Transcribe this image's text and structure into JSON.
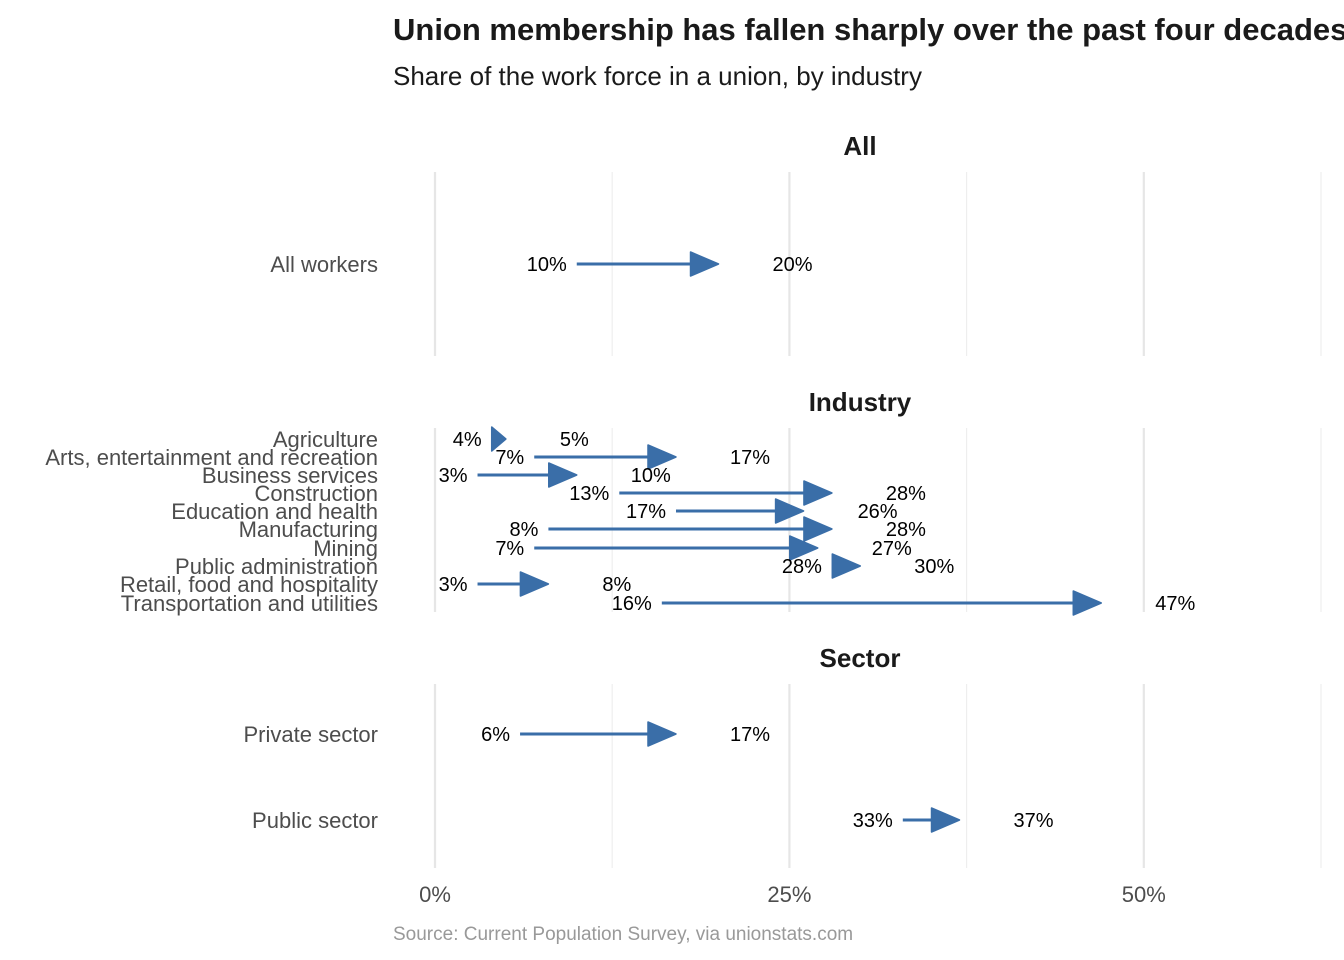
{
  "chart_data": {
    "type": "arrow",
    "title": "Union membership has fallen sharply over the past four decades",
    "subtitle": "Share of the work force in a union, by industry",
    "caption": "Source: Current Population Survey, via unionstats.com",
    "x_ticks": [
      "0%",
      "25%",
      "50%"
    ],
    "xlim": [
      0,
      62.5
    ],
    "arrow_color": "#3a6ea8",
    "panels": [
      {
        "name": "All",
        "rows": [
          {
            "label": "All workers",
            "from": 20,
            "to": 10,
            "from_label": "20%",
            "to_label": "10%"
          }
        ]
      },
      {
        "name": "Industry",
        "rows": [
          {
            "label": "Agriculture",
            "from": 5,
            "to": 4,
            "from_label": "5%",
            "to_label": "4%"
          },
          {
            "label": "Arts, entertainment and recreation",
            "from": 17,
            "to": 7,
            "from_label": "17%",
            "to_label": "7%"
          },
          {
            "label": "Business services",
            "from": 10,
            "to": 3,
            "from_label": "10%",
            "to_label": "3%"
          },
          {
            "label": "Construction",
            "from": 28,
            "to": 13,
            "from_label": "28%",
            "to_label": "13%"
          },
          {
            "label": "Education and health",
            "from": 26,
            "to": 17,
            "from_label": "26%",
            "to_label": "17%"
          },
          {
            "label": "Manufacturing",
            "from": 28,
            "to": 8,
            "from_label": "28%",
            "to_label": "8%"
          },
          {
            "label": "Mining",
            "from": 27,
            "to": 7,
            "from_label": "27%",
            "to_label": "7%"
          },
          {
            "label": "Public administration",
            "from": 30,
            "to": 28,
            "from_label": "30%",
            "to_label": "28%"
          },
          {
            "label": "Retail, food and hospitality",
            "from": 8,
            "to": 3,
            "from_label": "8%",
            "to_label": "3%"
          },
          {
            "label": "Transportation and utilities",
            "from": 47,
            "to": 16,
            "from_label": "47%",
            "to_label": "16%"
          }
        ]
      },
      {
        "name": "Sector",
        "rows": [
          {
            "label": "Private sector",
            "from": 17,
            "to": 6,
            "from_label": "17%",
            "to_label": "6%"
          },
          {
            "label": "Public sector",
            "from": 37,
            "to": 33,
            "from_label": "37%",
            "to_label": "33%"
          }
        ]
      }
    ]
  }
}
